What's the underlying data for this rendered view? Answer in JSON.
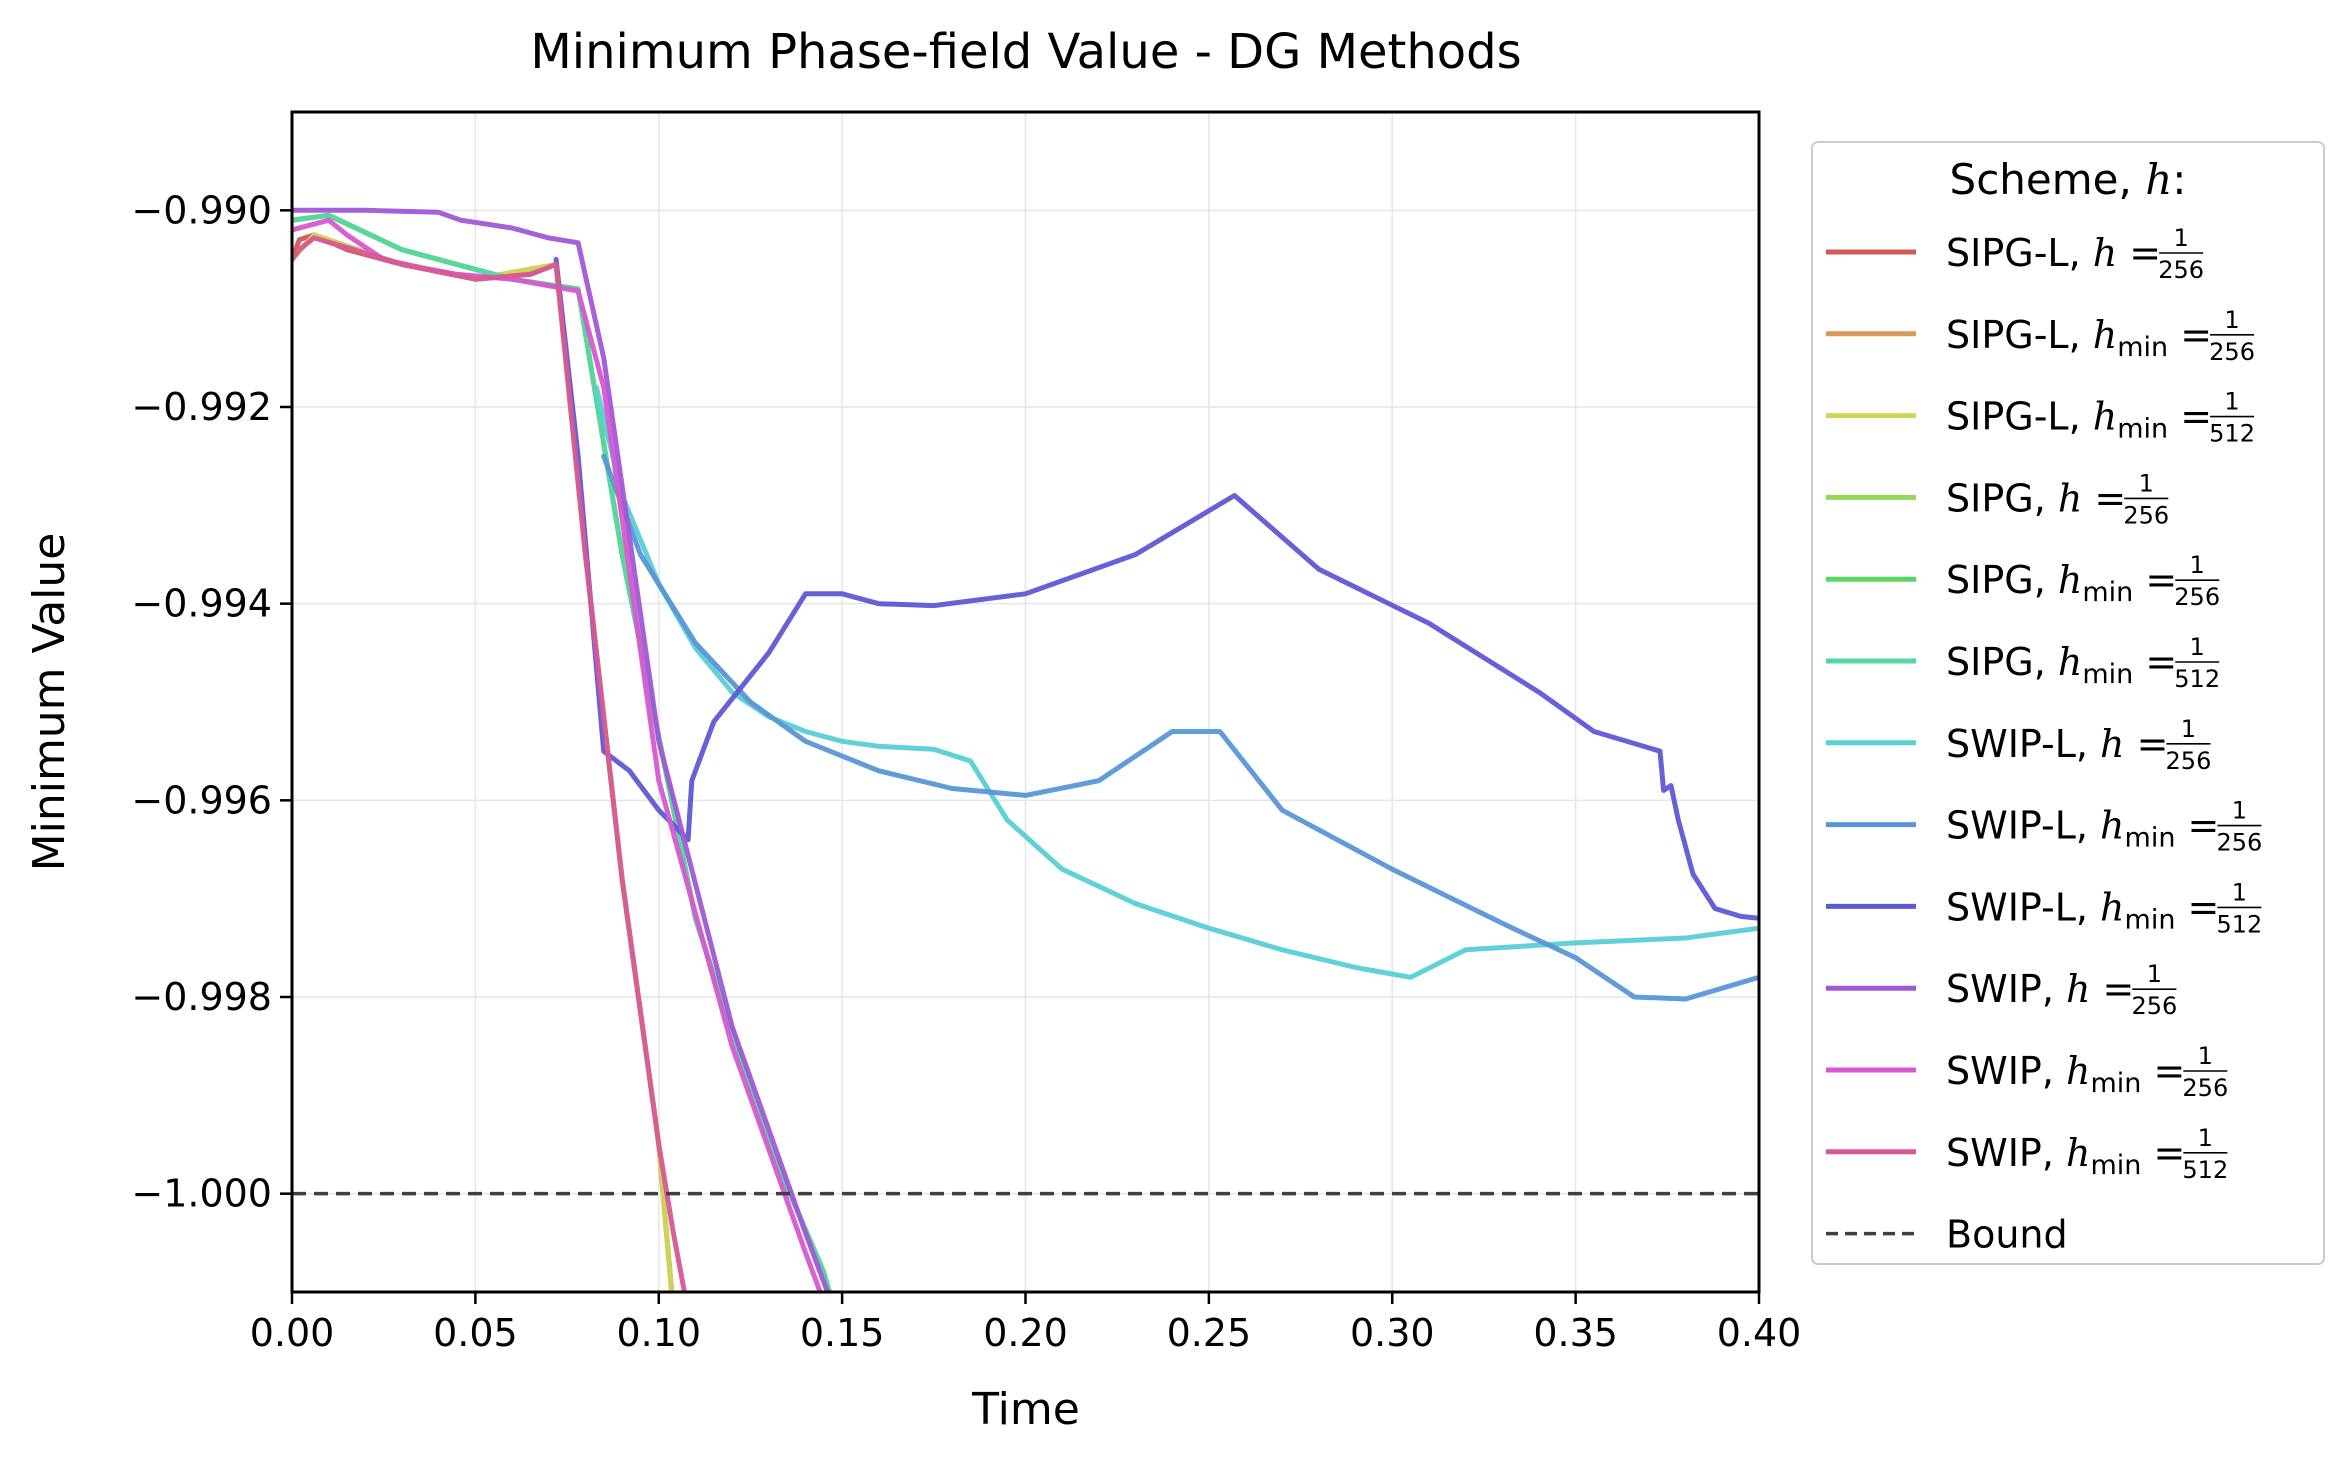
{
  "chart_data": {
    "type": "line",
    "title": "Minimum Phase-field Value - DG Methods",
    "xlabel": "Time",
    "ylabel": "Minimum Value",
    "xlim": [
      0.0,
      0.4
    ],
    "ylim": [
      -1.001,
      -0.989
    ],
    "xticks": [
      0.0,
      0.05,
      0.1,
      0.15,
      0.2,
      0.25,
      0.3,
      0.35,
      0.4
    ],
    "xtick_labels": [
      "0.00",
      "0.05",
      "0.10",
      "0.15",
      "0.20",
      "0.25",
      "0.30",
      "0.35",
      "0.40"
    ],
    "yticks": [
      -1.0,
      -0.998,
      -0.996,
      -0.994,
      -0.992,
      -0.99
    ],
    "ytick_labels": [
      "−1.000",
      "−0.998",
      "−0.996",
      "−0.994",
      "−0.992",
      "−0.990"
    ],
    "grid": true,
    "legend_title": "Scheme, h:",
    "legend_position": "outside-right",
    "series": [
      {
        "name": "SIPG-L, h = 1/256",
        "scheme": "SIPG-L",
        "hvar": "h",
        "frac": "1/256",
        "color": "#d2595a",
        "x": [
          0.0,
          0.002,
          0.006,
          0.015,
          0.03,
          0.05,
          0.065,
          0.072,
          0.08,
          0.09,
          0.1,
          0.104
        ],
        "y": [
          -0.9905,
          -0.9903,
          -0.99025,
          -0.9904,
          -0.99055,
          -0.9907,
          -0.99065,
          -0.99055,
          -0.9935,
          -0.9968,
          -0.9995,
          -1.0012
        ]
      },
      {
        "name": "SIPG-L, h_min = 1/256",
        "scheme": "SIPG-L",
        "hvar": "h_min",
        "frac": "1/256",
        "color": "#d99a59",
        "x": [
          0.0,
          0.006,
          0.03,
          0.05,
          0.072,
          0.08,
          0.09,
          0.1,
          0.104
        ],
        "y": [
          -0.9905,
          -0.99025,
          -0.99055,
          -0.9907,
          -0.99055,
          -0.9935,
          -0.9968,
          -0.9995,
          -1.0012
        ]
      },
      {
        "name": "SIPG-L, h_min = 1/512",
        "scheme": "SIPG-L",
        "hvar": "h_min",
        "frac": "1/512",
        "color": "#cdd659",
        "x": [
          0.0,
          0.006,
          0.03,
          0.05,
          0.072,
          0.08,
          0.09,
          0.1,
          0.104
        ],
        "y": [
          -0.9905,
          -0.99025,
          -0.99055,
          -0.9907,
          -0.99055,
          -0.9935,
          -0.9968,
          -0.9995,
          -1.0012
        ]
      },
      {
        "name": "SIPG, h = 1/256",
        "scheme": "SIPG",
        "hvar": "h",
        "frac": "1/256",
        "color": "#93d659",
        "x": [
          0.0,
          0.01,
          0.03,
          0.06,
          0.078,
          0.09,
          0.11,
          0.13,
          0.145,
          0.148
        ],
        "y": [
          -0.9901,
          -0.99005,
          -0.9904,
          -0.9907,
          -0.9908,
          -0.9935,
          -0.9972,
          -0.9995,
          -1.0008,
          -1.0012
        ]
      },
      {
        "name": "SIPG, h_min = 1/256",
        "scheme": "SIPG",
        "hvar": "h_min",
        "frac": "1/256",
        "color": "#59d665",
        "x": [
          0.0,
          0.01,
          0.03,
          0.06,
          0.078,
          0.09,
          0.11,
          0.13,
          0.145,
          0.148
        ],
        "y": [
          -0.9901,
          -0.99005,
          -0.9904,
          -0.9907,
          -0.9908,
          -0.9935,
          -0.9972,
          -0.9995,
          -1.0008,
          -1.0012
        ]
      },
      {
        "name": "SIPG, h_min = 1/512",
        "scheme": "SIPG",
        "hvar": "h_min",
        "frac": "1/512",
        "color": "#59d69f",
        "x": [
          0.0,
          0.01,
          0.03,
          0.06,
          0.078,
          0.09,
          0.11,
          0.13,
          0.145,
          0.148
        ],
        "y": [
          -0.9901,
          -0.99005,
          -0.9904,
          -0.9907,
          -0.9908,
          -0.9935,
          -0.9972,
          -0.9995,
          -1.0008,
          -1.0012
        ]
      },
      {
        "name": "SWIP-L, h = 1/256",
        "scheme": "SWIP-L",
        "hvar": "h",
        "frac": "1/256",
        "color": "#59cfd6",
        "x": [
          0.083,
          0.09,
          0.1,
          0.11,
          0.12,
          0.13,
          0.14,
          0.15,
          0.16,
          0.175,
          0.185,
          0.195,
          0.21,
          0.23,
          0.25,
          0.27,
          0.29,
          0.305,
          0.32,
          0.35,
          0.38,
          0.4
        ],
        "y": [
          -0.9918,
          -0.9929,
          -0.9938,
          -0.99445,
          -0.9949,
          -0.99515,
          -0.9953,
          -0.9954,
          -0.99545,
          -0.99548,
          -0.9956,
          -0.9962,
          -0.9967,
          -0.99705,
          -0.9973,
          -0.99752,
          -0.9977,
          -0.9978,
          -0.99752,
          -0.99745,
          -0.9974,
          -0.9973
        ]
      },
      {
        "name": "SWIP-L, h_min = 1/256",
        "scheme": "SWIP-L",
        "hvar": "h_min",
        "frac": "1/256",
        "color": "#5996d6",
        "x": [
          0.085,
          0.095,
          0.11,
          0.125,
          0.14,
          0.16,
          0.18,
          0.2,
          0.22,
          0.24,
          0.253,
          0.27,
          0.3,
          0.33,
          0.35,
          0.366,
          0.38,
          0.4
        ],
        "y": [
          -0.9925,
          -0.9935,
          -0.9944,
          -0.995,
          -0.9954,
          -0.9957,
          -0.99588,
          -0.99595,
          -0.9958,
          -0.9953,
          -0.9953,
          -0.9961,
          -0.9967,
          -0.99725,
          -0.9976,
          -0.998,
          -0.99802,
          -0.9978
        ]
      },
      {
        "name": "SWIP-L, h_min = 1/512",
        "scheme": "SWIP-L",
        "hvar": "h_min",
        "frac": "1/512",
        "color": "#5f59d6",
        "x": [
          0.072,
          0.078,
          0.085,
          0.092,
          0.1,
          0.108,
          0.109,
          0.115,
          0.13,
          0.14,
          0.15,
          0.16,
          0.175,
          0.2,
          0.23,
          0.257,
          0.28,
          0.31,
          0.34,
          0.355,
          0.373,
          0.374,
          0.376,
          0.378,
          0.382,
          0.388,
          0.395,
          0.4
        ],
        "y": [
          -0.9905,
          -0.9925,
          -0.9955,
          -0.9957,
          -0.9961,
          -0.9964,
          -0.9958,
          -0.9952,
          -0.9945,
          -0.9939,
          -0.9939,
          -0.994,
          -0.99402,
          -0.9939,
          -0.9935,
          -0.9929,
          -0.99365,
          -0.9942,
          -0.9949,
          -0.9953,
          -0.9955,
          -0.9959,
          -0.99585,
          -0.9962,
          -0.99675,
          -0.9971,
          -0.99718,
          -0.9972
        ]
      },
      {
        "name": "SWIP, h = 1/256",
        "scheme": "SWIP",
        "hvar": "h",
        "frac": "1/256",
        "color": "#9f59d6",
        "x": [
          0.0,
          0.02,
          0.04,
          0.046,
          0.06,
          0.07,
          0.078,
          0.085,
          0.1,
          0.12,
          0.14,
          0.148
        ],
        "y": [
          -0.99,
          -0.99,
          -0.99002,
          -0.9901,
          -0.99018,
          -0.99028,
          -0.99033,
          -0.9915,
          -0.9954,
          -0.9983,
          -1.0004,
          -1.0012
        ]
      },
      {
        "name": "SWIP, h_min = 1/256",
        "scheme": "SWIP",
        "hvar": "h_min",
        "frac": "1/256",
        "color": "#d659d0",
        "x": [
          0.0,
          0.005,
          0.01,
          0.015,
          0.025,
          0.035,
          0.045,
          0.06,
          0.078,
          0.085,
          0.1,
          0.12,
          0.14,
          0.146
        ],
        "y": [
          -0.9902,
          -0.99015,
          -0.9901,
          -0.99025,
          -0.9905,
          -0.99058,
          -0.99065,
          -0.9907,
          -0.99082,
          -0.9918,
          -0.9958,
          -0.9985,
          -1.0006,
          -1.0012
        ]
      },
      {
        "name": "SWIP, h_min = 1/512",
        "scheme": "SWIP",
        "hvar": "h_min",
        "frac": "1/512",
        "color": "#d65996",
        "x": [
          0.0,
          0.002,
          0.006,
          0.015,
          0.03,
          0.05,
          0.065,
          0.072,
          0.08,
          0.09,
          0.1,
          0.104,
          0.108
        ],
        "y": [
          -0.9905,
          -0.9904,
          -0.99028,
          -0.99038,
          -0.99055,
          -0.9907,
          -0.99065,
          -0.99055,
          -0.9935,
          -0.9968,
          -0.9995,
          -1.0004,
          -1.0012
        ]
      }
    ],
    "bound": {
      "name": "Bound",
      "y": -1.0,
      "color": "#404040"
    }
  }
}
